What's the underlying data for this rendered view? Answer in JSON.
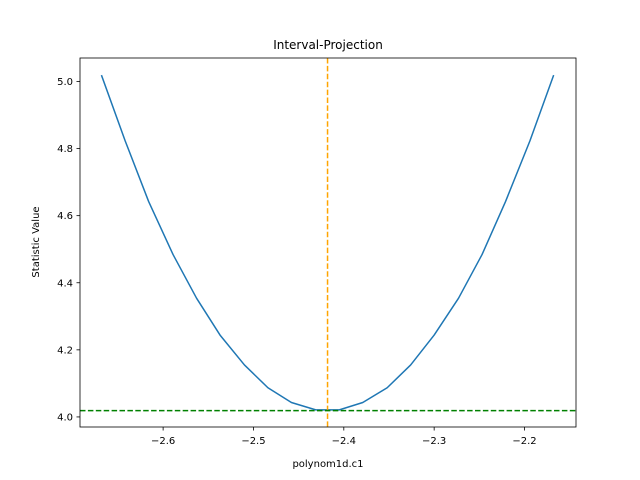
{
  "chart_data": {
    "type": "line",
    "title": "Interval-Projection",
    "xlabel": "polynom1d.c1",
    "ylabel": "Statistic Value",
    "xlim": [
      -2.692,
      -2.143
    ],
    "ylim": [
      3.97,
      5.07
    ],
    "x_ticks": [
      -2.6,
      -2.5,
      -2.4,
      -2.3,
      -2.2
    ],
    "x_tick_labels": [
      "−2.6",
      "−2.5",
      "−2.4",
      "−2.3",
      "−2.2"
    ],
    "y_ticks": [
      4.0,
      4.2,
      4.4,
      4.6,
      4.8,
      5.0
    ],
    "y_tick_labels": [
      "4.0",
      "4.2",
      "4.4",
      "4.6",
      "4.8",
      "5.0"
    ],
    "grid": false,
    "series": [
      {
        "color": "#1f77b4",
        "x": [
          -2.668,
          -2.642,
          -2.616,
          -2.589,
          -2.563,
          -2.537,
          -2.51,
          -2.484,
          -2.458,
          -2.431,
          -2.405,
          -2.379,
          -2.352,
          -2.326,
          -2.3,
          -2.273,
          -2.247,
          -2.221,
          -2.194,
          -2.168
        ],
        "y": [
          5.017,
          4.823,
          4.642,
          4.484,
          4.354,
          4.244,
          4.155,
          4.087,
          4.043,
          4.021,
          4.021,
          4.043,
          4.087,
          4.155,
          4.244,
          4.354,
          4.484,
          4.642,
          4.823,
          5.017
        ]
      }
    ],
    "reference_lines": [
      {
        "orientation": "vertical",
        "value": -2.418,
        "color": "#ffa500",
        "style": "dashed"
      },
      {
        "orientation": "horizontal",
        "value": 4.019,
        "color": "#008000",
        "style": "dashed"
      }
    ]
  }
}
